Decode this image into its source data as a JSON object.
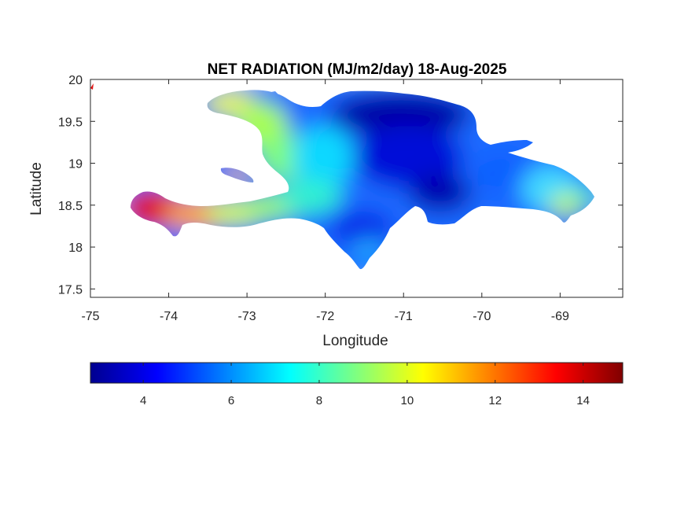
{
  "title": "NET RADIATION (MJ/m2/day) 18-Aug-2025",
  "axes": {
    "xlabel": "Longitude",
    "ylabel": "Latitude",
    "xlim": [
      -75,
      -68.2
    ],
    "ylim": [
      17.4,
      20
    ],
    "xticks": [
      -75,
      -74,
      -73,
      -72,
      -71,
      -70,
      -69
    ],
    "yticks": [
      17.5,
      18,
      18.5,
      19,
      19.5,
      20
    ],
    "xtick_labels": [
      "-75",
      "-74",
      "-73",
      "-72",
      "-71",
      "-70",
      "-69"
    ],
    "ytick_labels": [
      "17.5",
      "18",
      "18.5",
      "19",
      "19.5",
      "20"
    ]
  },
  "colorbar": {
    "orientation": "horizontal",
    "colormap": "jet",
    "clim": [
      2.8,
      14.9
    ],
    "ticks": [
      4,
      6,
      8,
      10,
      12,
      14
    ],
    "tick_labels": [
      "4",
      "6",
      "8",
      "10",
      "12",
      "14"
    ]
  },
  "chart_data": {
    "type": "heatmap",
    "title": "NET RADIATION (MJ/m2/day) 18-Aug-2025",
    "xlabel": "Longitude",
    "ylabel": "Latitude",
    "region_values": [
      {
        "lon": -74.2,
        "lat": 18.45,
        "value": 14.0
      },
      {
        "lon": -73.7,
        "lat": 18.45,
        "value": 11.0
      },
      {
        "lon": -73.2,
        "lat": 19.75,
        "value": 10.0
      },
      {
        "lon": -73.0,
        "lat": 19.0,
        "value": 9.5
      },
      {
        "lon": -72.5,
        "lat": 19.2,
        "value": 7.5
      },
      {
        "lon": -72.0,
        "lat": 18.8,
        "value": 6.5
      },
      {
        "lon": -71.5,
        "lat": 19.3,
        "value": 4.8
      },
      {
        "lon": -70.9,
        "lat": 19.7,
        "value": 3.2
      },
      {
        "lon": -70.7,
        "lat": 18.8,
        "value": 3.5
      },
      {
        "lon": -71.5,
        "lat": 18.0,
        "value": 5.5
      },
      {
        "lon": -70.0,
        "lat": 18.9,
        "value": 5.5
      },
      {
        "lon": -69.3,
        "lat": 18.7,
        "value": 8.0
      },
      {
        "lon": -68.9,
        "lat": 18.5,
        "value": 9.5
      }
    ]
  }
}
